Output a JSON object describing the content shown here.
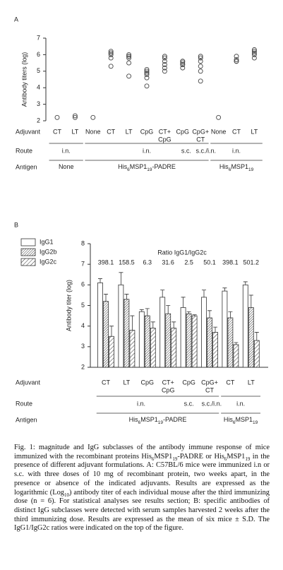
{
  "chart_data": [
    {
      "type": "strip",
      "label": "A",
      "ylabel": "Antibody titers (log)",
      "ylim": [
        2,
        7
      ],
      "yticks": [
        2,
        3,
        4,
        5,
        6,
        7
      ],
      "categories": [
        [
          "CT"
        ],
        [
          "LT"
        ],
        [
          "None"
        ],
        [
          "CT"
        ],
        [
          "LT"
        ],
        [
          "CpG"
        ],
        [
          "CT+",
          "CpG"
        ],
        [
          "CpG"
        ],
        [
          "CpG+",
          "CT"
        ],
        [
          "None"
        ],
        [
          "CT"
        ],
        [
          "LT"
        ]
      ],
      "points": [
        [
          2.2
        ],
        [
          2.2,
          2.3
        ],
        [
          2.2
        ],
        [
          5.3,
          5.8,
          6.0,
          6.1,
          6.2,
          6.1
        ],
        [
          4.7,
          5.5,
          5.8,
          5.9,
          5.9,
          6.0
        ],
        [
          4.1,
          4.6,
          4.8,
          4.9,
          5.0,
          5.1
        ],
        [
          5.0,
          5.2,
          5.4,
          5.6,
          5.8,
          5.9
        ],
        [
          5.2,
          5.4,
          5.5,
          5.6,
          5.6,
          5.4
        ],
        [
          4.4,
          5.0,
          5.3,
          5.6,
          5.8,
          5.9
        ],
        [
          2.2
        ],
        [
          5.6,
          5.6,
          5.7,
          5.9
        ],
        [
          5.8,
          6.0,
          6.1,
          6.2,
          6.3
        ]
      ],
      "color": "#444444",
      "row_titles": [
        "Adjuvant",
        "Route",
        "Antigen"
      ],
      "route": [
        "i.n.",
        "i.n.",
        "s.c.",
        "s.c./i.n.",
        "i.n."
      ],
      "antigen": [
        [
          "None"
        ],
        [
          "His",
          "6",
          "MSP1",
          "19",
          "-PADRE"
        ],
        [
          "His",
          "6",
          "MSP1",
          "19"
        ]
      ]
    },
    {
      "type": "bar",
      "label": "B",
      "ylabel": "Antibody titer (log)",
      "ylim": [
        2,
        8
      ],
      "yticks": [
        2,
        3,
        4,
        5,
        6,
        7,
        8
      ],
      "categories": [
        [
          "CT"
        ],
        [
          "LT"
        ],
        [
          "CpG"
        ],
        [
          "CT+",
          "CpG"
        ],
        [
          "CpG"
        ],
        [
          "CpG+",
          "CT"
        ],
        [
          "CT"
        ],
        [
          "LT"
        ]
      ],
      "series": [
        {
          "name": "IgG1",
          "fill": "white",
          "values": [
            6.1,
            6.0,
            4.7,
            5.4,
            4.9,
            5.4,
            5.7,
            6.0
          ],
          "errors": [
            0.2,
            0.6,
            0.1,
            0.35,
            0.5,
            0.35,
            0.15,
            0.15
          ]
        },
        {
          "name": "IgG2b",
          "fill": "hatch-dense",
          "values": [
            5.2,
            5.3,
            4.5,
            4.6,
            4.6,
            4.4,
            4.4,
            4.9
          ],
          "errors": [
            0.35,
            0.25,
            0.35,
            0.4,
            0.1,
            0.35,
            0.3,
            0.6
          ]
        },
        {
          "name": "IgG2c",
          "fill": "hatch-sparse",
          "values": [
            3.5,
            3.8,
            3.9,
            3.9,
            4.5,
            3.7,
            3.1,
            3.3
          ],
          "errors": [
            0.5,
            0.7,
            0.3,
            0.3,
            0.05,
            0.25,
            0.1,
            0.4
          ]
        }
      ],
      "ratio_title": "Ratio IgG1/IgG2c",
      "ratios": [
        398.1,
        158.5,
        6.3,
        31.6,
        2.5,
        50.1,
        398.1,
        501.2
      ],
      "row_titles": [
        "Adjuvant",
        "Route",
        "Antigen"
      ],
      "route": [
        "i.n.",
        "s.c.",
        "s.c./i.n.",
        "i.n."
      ],
      "antigen": [
        [
          "His",
          "6",
          "MSP1",
          "19",
          "-PADRE"
        ],
        [
          "His",
          "6",
          "MSP1",
          "19"
        ]
      ]
    }
  ],
  "caption": [
    "Fig. 1: magnitude and IgG subclasses of the antibody immune response of mice immunized with the recombinant proteins His",
    "6",
    "MSP1",
    "19",
    "-PADRE or His",
    "6",
    "MSP1",
    "19",
    " in the presence of different adjuvant formulations. A: C57BL/6 mice were immunized i.n or s.c. with three doses of 10 mg of recombinant protein, two weeks apart, in the presence or absence of the indicated adjuvants. Results are expressed as the logarithmic (Log",
    "10",
    ") antibody titer of each individual mouse after the third immunizing dose (n = 6). For statistical analyses see results section; B: specific antibodies of distinct IgG subclasses were detected with serum samples harvested 2 weeks after the third immunizing dose. Results are expressed as the mean of six mice ± S.D. The IgG1/IgG2c ratios were indicated on the top of the figure."
  ]
}
